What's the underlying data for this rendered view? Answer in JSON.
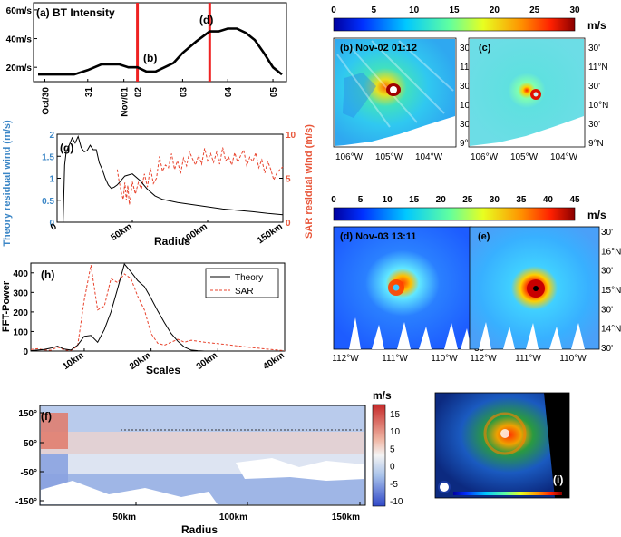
{
  "panel_a": {
    "label": "(a) BT Intensity",
    "marker_b": "(b)",
    "marker_d": "(d)",
    "y_ticks": [
      "20m/s",
      "40m/s",
      "60m/s"
    ],
    "x_ticks": [
      "Oct/30",
      "31",
      "Nov/01",
      "02",
      "03",
      "04",
      "05"
    ]
  },
  "panel_b": {
    "label": "(b) Nov-02 01:12",
    "lat_ticks": [
      "30'",
      "11°N",
      "30'",
      "10°N",
      "30'",
      "9°N"
    ],
    "lon_ticks": [
      "106°W",
      "105°W",
      "104°W"
    ]
  },
  "panel_c": {
    "label": "(c)",
    "lat_ticks": [
      "30'",
      "11°N",
      "30'",
      "10°N",
      "30'",
      "9°N"
    ],
    "lon_ticks": [
      "106°W",
      "105°W",
      "104°W"
    ]
  },
  "colorbar_top": {
    "ticks": [
      "0",
      "5",
      "10",
      "15",
      "20",
      "25",
      "30"
    ],
    "unit": "m/s"
  },
  "colorbar_mid": {
    "ticks": [
      "0",
      "5",
      "10",
      "15",
      "20",
      "25",
      "30",
      "35",
      "40",
      "45"
    ],
    "unit": "m/s"
  },
  "panel_d": {
    "label": "(d) Nov-03 13:11",
    "lat_ticks": [
      "30'",
      "16°N",
      "30'",
      "15°N",
      "30'",
      "14°N",
      "30'"
    ],
    "lon_ticks": [
      "112°W",
      "111°W",
      "110°W"
    ]
  },
  "panel_e": {
    "label": "(e)",
    "lat_ticks": [
      "30'",
      "16°N",
      "30'",
      "15°N",
      "30'",
      "14°N",
      "30'"
    ],
    "lon_ticks": [
      "112°W",
      "111°W",
      "110°W"
    ]
  },
  "panel_g": {
    "label": "(g)",
    "left_ylabel": "Theory residual wind (m/s)",
    "right_ylabel": "SAR residual wind (m/s)",
    "xlabel": "Radius",
    "left_ticks": [
      "0",
      "0.5",
      "1",
      "1.5",
      "2"
    ],
    "right_ticks": [
      "0",
      "5",
      "10"
    ],
    "x_ticks": [
      "0",
      "50km",
      "100km",
      "150km"
    ]
  },
  "panel_h": {
    "label": "(h)",
    "ylabel": "FFT-Power",
    "xlabel": "Scales",
    "y_ticks": [
      "0",
      "100",
      "200",
      "300",
      "400"
    ],
    "x_ticks": [
      "10km",
      "20km",
      "30km",
      "40km"
    ],
    "legend": [
      "Theory",
      "SAR"
    ]
  },
  "panel_f": {
    "label": "(f)",
    "xlabel": "Radius",
    "y_ticks": [
      "150°",
      "50°",
      "-50°",
      "-150°"
    ],
    "x_ticks": [
      "50km",
      "100km",
      "150km"
    ],
    "cbar_unit": "m/s",
    "cbar_ticks": [
      "15",
      "10",
      "5",
      "0",
      "-5",
      "-10"
    ]
  },
  "panel_i": {
    "label": "(i)"
  },
  "colors": {
    "theory": "#000000",
    "sar": "#e8432d",
    "marker": "#ee2222",
    "left_axis": "#3b86c6",
    "right_axis": "#e8563a"
  },
  "chart_data": [
    {
      "type": "line",
      "title": "(a) BT Intensity",
      "x_unit": "day",
      "series": [
        {
          "x": [
            29.8,
            30.3,
            30.6,
            30.9,
            31.2,
            31.6,
            31.8,
            32.0,
            32.2,
            32.4,
            32.6,
            32.8,
            33.0,
            33.3,
            33.6,
            33.8,
            34.0,
            34.2,
            34.4,
            34.6,
            34.8,
            35.0,
            35.2
          ],
          "values": [
            15,
            15,
            15,
            18,
            22,
            22,
            20,
            20,
            17,
            17,
            20,
            23,
            30,
            38,
            45,
            45,
            47,
            47,
            44,
            39,
            30,
            20,
            15
          ]
        }
      ],
      "ylim": [
        10,
        65
      ],
      "markers_x": [
        32.0,
        33.6
      ]
    },
    {
      "type": "line",
      "title": "(g)",
      "xlabel": "Radius",
      "x_unit": "km",
      "series": [
        {
          "name": "Theory",
          "axis": "left",
          "x": [
            4,
            5,
            6,
            8,
            10,
            12,
            14,
            16,
            18,
            20,
            22,
            24,
            26,
            28,
            30,
            32,
            34,
            36,
            38,
            40,
            45,
            50,
            55,
            60,
            65,
            70,
            80,
            90,
            100,
            110,
            120,
            130,
            140,
            150
          ],
          "values": [
            0,
            1.3,
            1.6,
            1.75,
            1.92,
            1.8,
            1.95,
            1.7,
            1.6,
            1.63,
            1.75,
            1.65,
            1.65,
            1.35,
            1.2,
            1.0,
            0.85,
            0.77,
            0.8,
            0.85,
            1.05,
            1.1,
            0.95,
            0.75,
            0.6,
            0.52,
            0.45,
            0.4,
            0.35,
            0.3,
            0.27,
            0.24,
            0.2,
            0.17
          ]
        },
        {
          "name": "SAR",
          "axis": "right",
          "x": [
            40,
            41,
            42,
            43,
            44,
            45,
            46,
            47,
            48,
            49,
            50,
            52,
            54,
            56,
            58,
            60,
            62,
            64,
            66,
            68,
            70,
            72,
            74,
            76,
            78,
            80,
            82,
            84,
            86,
            88,
            90,
            92,
            94,
            96,
            98,
            100,
            102,
            104,
            106,
            108,
            110,
            112,
            114,
            116,
            118,
            120,
            122,
            124,
            126,
            128,
            130,
            132,
            134,
            136,
            138,
            140,
            142,
            144,
            146,
            148,
            150
          ],
          "values": [
            6.0,
            4.8,
            4.0,
            3.1,
            2.6,
            4.5,
            2.5,
            4.2,
            2.0,
            3.0,
            4.6,
            3.2,
            4.5,
            3.8,
            5.5,
            4.0,
            6.2,
            4.4,
            5.0,
            7.5,
            5.8,
            6.5,
            6.2,
            7.8,
            6.0,
            7.0,
            5.5,
            7.3,
            6.4,
            8.0,
            7.2,
            6.5,
            7.6,
            6.6,
            8.4,
            7.0,
            7.8,
            6.8,
            8.0,
            6.6,
            8.5,
            7.0,
            7.4,
            6.5,
            7.9,
            6.8,
            7.6,
            8.2,
            6.4,
            7.4,
            6.9,
            7.9,
            6.2,
            7.1,
            5.6,
            6.9,
            6.0,
            4.8,
            5.6,
            6.0,
            6.3
          ]
        }
      ],
      "xlim": [
        0,
        150
      ],
      "ylim_left": [
        0,
        2
      ],
      "ylim_right": [
        0,
        10
      ]
    },
    {
      "type": "line",
      "title": "(h)",
      "xlabel": "Scales",
      "x_unit": "km",
      "series": [
        {
          "name": "Theory",
          "x": [
            2,
            3,
            4,
            5,
            6,
            7,
            8,
            9,
            10,
            11,
            12,
            13,
            14,
            15,
            16,
            17,
            18,
            19,
            20,
            21,
            22,
            23,
            24,
            25,
            26,
            27,
            28
          ],
          "values": [
            2,
            5,
            8,
            15,
            25,
            10,
            5,
            30,
            75,
            80,
            45,
            110,
            200,
            320,
            445,
            405,
            360,
            330,
            270,
            205,
            145,
            90,
            50,
            20,
            5,
            2,
            0
          ]
        },
        {
          "name": "SAR",
          "x": [
            2,
            3,
            4,
            5,
            6,
            7,
            8,
            9,
            10,
            11,
            12,
            13,
            14,
            15,
            16,
            17,
            18,
            19,
            20,
            21,
            22,
            23,
            24,
            25,
            26,
            28,
            30,
            32,
            34,
            36,
            38,
            40
          ],
          "values": [
            8,
            12,
            6,
            4,
            20,
            6,
            3,
            25,
            260,
            440,
            210,
            230,
            370,
            350,
            395,
            370,
            280,
            210,
            90,
            40,
            30,
            45,
            60,
            45,
            55,
            45,
            38,
            30,
            22,
            15,
            8,
            2
          ]
        }
      ],
      "xlim": [
        2,
        40
      ],
      "ylim": [
        0,
        450
      ]
    }
  ]
}
